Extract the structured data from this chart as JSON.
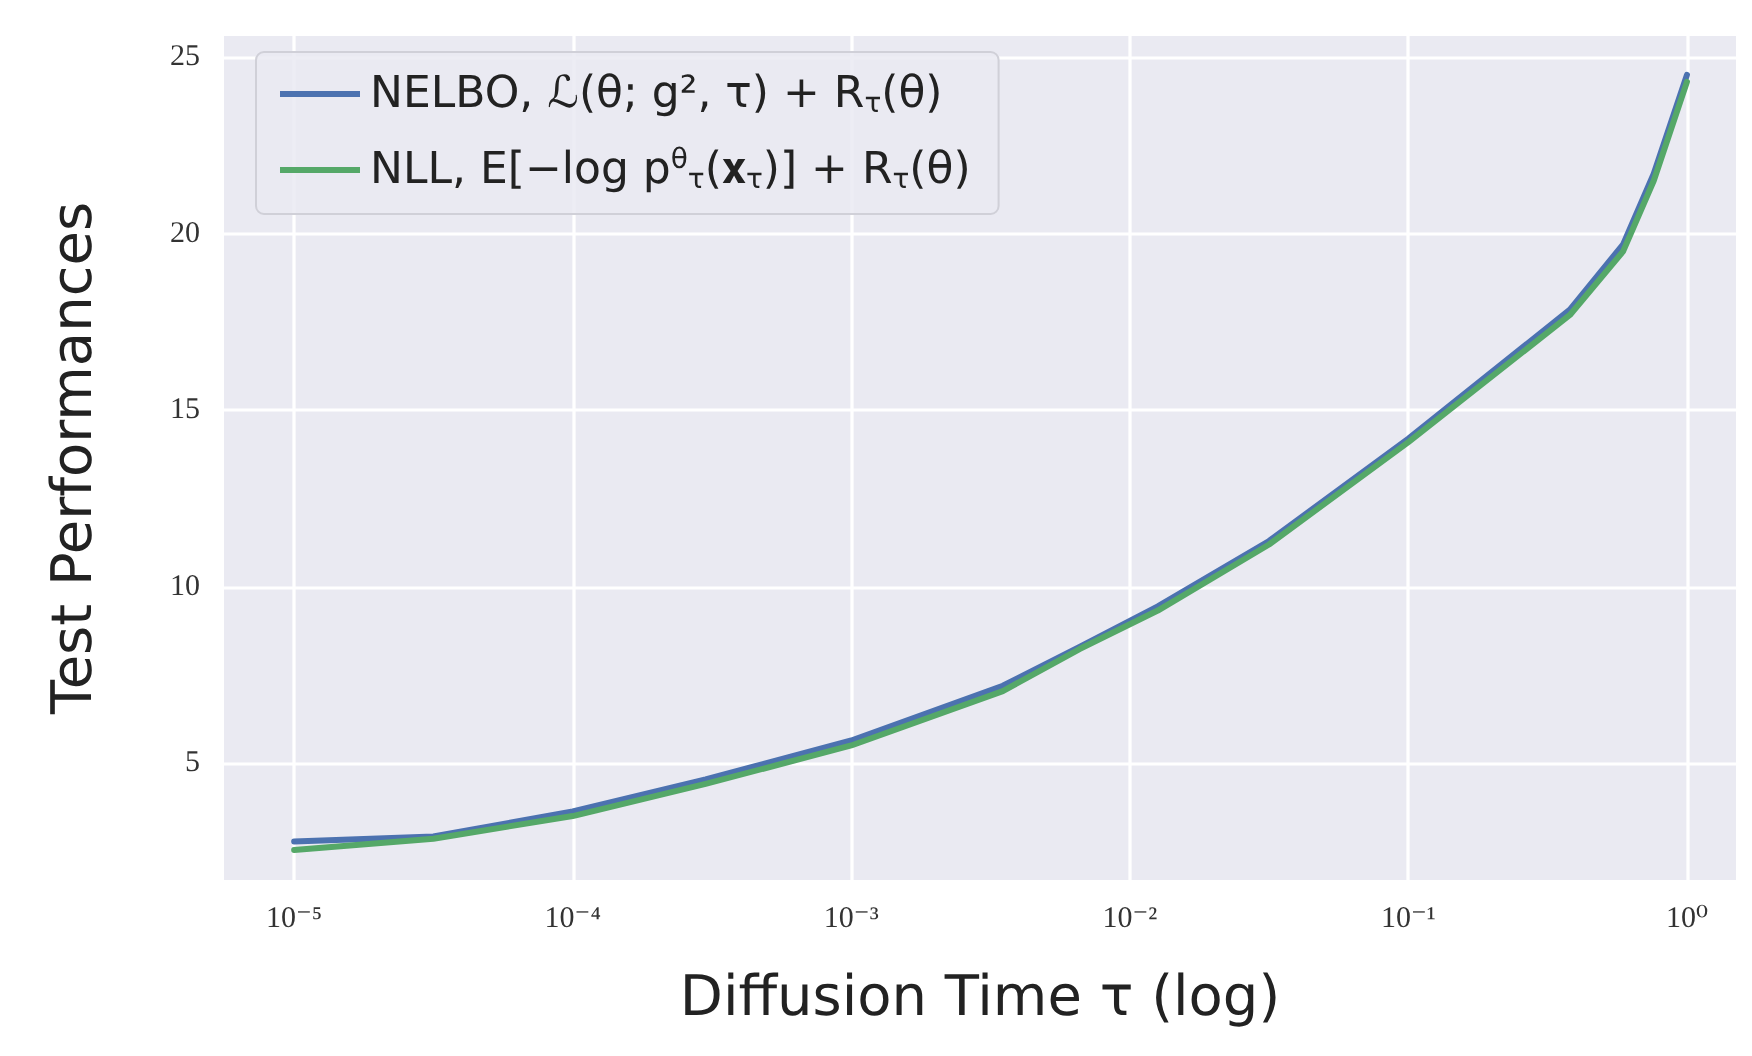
{
  "chart_data": {
    "type": "line",
    "xlabel": "Diffusion Time τ (log)",
    "ylabel": "Test Performances",
    "log": "x",
    "grid": true,
    "legend": "top left",
    "marker": "none",
    "line_style": "solid",
    "xlim": [
      5.6e-06,
      1.5
    ],
    "ylim": [
      1.7,
      25.6
    ],
    "xticks": [
      {
        "value": 1e-05,
        "label": "10⁻⁵"
      },
      {
        "value": 0.0001,
        "label": "10⁻⁴"
      },
      {
        "value": 0.001,
        "label": "10⁻³"
      },
      {
        "value": 0.01,
        "label": "10⁻²"
      },
      {
        "value": 0.1,
        "label": "10⁻¹"
      },
      {
        "value": 1,
        "label": "10⁰"
      }
    ],
    "yticks": [
      5,
      10,
      15,
      20,
      25
    ],
    "x": [
      1e-05,
      3.16e-05,
      0.0001,
      0.0003,
      0.001,
      0.0035,
      0.0066,
      0.0126,
      0.0316,
      0.1,
      0.38,
      0.59,
      0.76,
      1
    ],
    "series": [
      {
        "name": "NELBO, ℒ(θ; g², τ) + R$_{τ}$(θ)",
        "color": "#4c72b0",
        "values": [
          2.79,
          2.93,
          3.64,
          4.55,
          5.65,
          7.2,
          8.3,
          9.45,
          11.3,
          14.2,
          17.85,
          19.7,
          21.7,
          24.5
        ]
      },
      {
        "name": "NLL, E[−log p$^{θ}$$_{τ}$(𝐱$_{τ}$)] + R$_{τ}$(θ)",
        "color": "#55a868",
        "values": [
          2.55,
          2.87,
          3.51,
          4.42,
          5.51,
          7.05,
          8.24,
          9.33,
          11.2,
          14.1,
          17.7,
          19.5,
          21.5,
          24.3
        ]
      }
    ]
  }
}
